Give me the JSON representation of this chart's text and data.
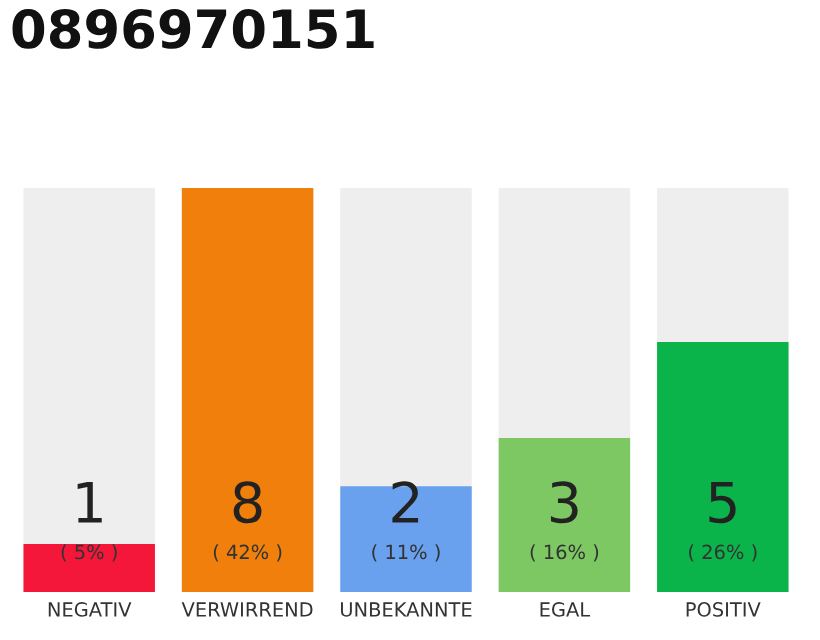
{
  "chart_data": {
    "type": "bar",
    "title": "0896970151",
    "categories": [
      "NEGATIV",
      "VERWIRREND",
      "UNBEKANNTE",
      "EGAL",
      "POSITIV"
    ],
    "values": [
      5,
      42,
      11,
      16,
      26
    ],
    "colors": [
      "#f5173a",
      "#f07f0c",
      "#6aa1ee",
      "#7dc862",
      "#0bb44a"
    ],
    "value_labels": [
      "( 5% )",
      "( 42% )",
      "( 11% )",
      "( 16% )",
      "( 26% )"
    ],
    "annotations": [
      "1",
      "8",
      "2",
      "3",
      "5"
    ],
    "ylim": [
      0,
      42
    ],
    "tick_labels": "x",
    "grid": false,
    "legend": false
  }
}
